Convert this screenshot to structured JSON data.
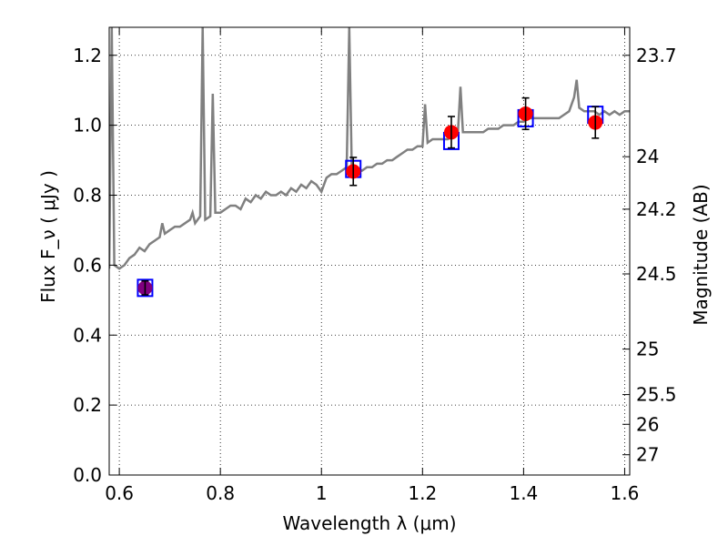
{
  "chart_data": {
    "type": "scatter",
    "title": "",
    "xlabel": "Wavelength  λ (μm)",
    "ylabel": "Flux  F_ν  ( μJy )",
    "ylabel_right": "Magnitude (AB)",
    "xlim": [
      0.58,
      1.61
    ],
    "ylim": [
      0.0,
      1.28
    ],
    "grid": true,
    "x_ticks": [
      0.6,
      0.8,
      1.0,
      1.2,
      1.4,
      1.6
    ],
    "x_tick_labels": [
      "0.6",
      "0.8",
      "1",
      "1.2",
      "1.4",
      "1.6"
    ],
    "y_ticks": [
      0.0,
      0.2,
      0.4,
      0.6,
      0.8,
      1.0,
      1.2
    ],
    "y_tick_labels": [
      "0.0",
      "0.2",
      "0.4",
      "0.6",
      "0.8",
      "1.0",
      "1.2"
    ],
    "right_ticks": [
      {
        "label": "23.7",
        "flux": 1.2
      },
      {
        "label": "24",
        "flux": 0.91
      },
      {
        "label": "24.2",
        "flux": 0.76
      },
      {
        "label": "24.5",
        "flux": 0.575
      },
      {
        "label": "25",
        "flux": 0.36
      },
      {
        "label": "25.5",
        "flux": 0.23
      },
      {
        "label": "26",
        "flux": 0.145
      },
      {
        "label": "27",
        "flux": 0.058
      }
    ],
    "series": [
      {
        "kind": "line",
        "color": "#808080",
        "points": [
          [
            0.58,
            0.59
          ],
          [
            0.585,
            1.28
          ],
          [
            0.59,
            0.6
          ],
          [
            0.6,
            0.59
          ],
          [
            0.61,
            0.6
          ],
          [
            0.62,
            0.62
          ],
          [
            0.63,
            0.63
          ],
          [
            0.64,
            0.65
          ],
          [
            0.65,
            0.64
          ],
          [
            0.66,
            0.66
          ],
          [
            0.67,
            0.67
          ],
          [
            0.68,
            0.68
          ],
          [
            0.685,
            0.72
          ],
          [
            0.69,
            0.69
          ],
          [
            0.7,
            0.7
          ],
          [
            0.71,
            0.71
          ],
          [
            0.72,
            0.71
          ],
          [
            0.73,
            0.72
          ],
          [
            0.74,
            0.73
          ],
          [
            0.745,
            0.75
          ],
          [
            0.75,
            0.72
          ],
          [
            0.76,
            0.74
          ],
          [
            0.765,
            1.28
          ],
          [
            0.77,
            0.73
          ],
          [
            0.78,
            0.74
          ],
          [
            0.785,
            1.09
          ],
          [
            0.79,
            0.75
          ],
          [
            0.8,
            0.75
          ],
          [
            0.81,
            0.76
          ],
          [
            0.82,
            0.77
          ],
          [
            0.83,
            0.77
          ],
          [
            0.84,
            0.76
          ],
          [
            0.85,
            0.79
          ],
          [
            0.86,
            0.78
          ],
          [
            0.87,
            0.8
          ],
          [
            0.88,
            0.79
          ],
          [
            0.89,
            0.81
          ],
          [
            0.9,
            0.8
          ],
          [
            0.91,
            0.8
          ],
          [
            0.92,
            0.81
          ],
          [
            0.93,
            0.8
          ],
          [
            0.94,
            0.82
          ],
          [
            0.95,
            0.81
          ],
          [
            0.96,
            0.83
          ],
          [
            0.97,
            0.82
          ],
          [
            0.98,
            0.84
          ],
          [
            0.99,
            0.83
          ],
          [
            1.0,
            0.81
          ],
          [
            1.01,
            0.85
          ],
          [
            1.02,
            0.86
          ],
          [
            1.03,
            0.86
          ],
          [
            1.04,
            0.87
          ],
          [
            1.05,
            0.88
          ],
          [
            1.055,
            1.28
          ],
          [
            1.06,
            0.87
          ],
          [
            1.07,
            0.88
          ],
          [
            1.08,
            0.87
          ],
          [
            1.09,
            0.88
          ],
          [
            1.1,
            0.88
          ],
          [
            1.11,
            0.89
          ],
          [
            1.12,
            0.89
          ],
          [
            1.13,
            0.9
          ],
          [
            1.14,
            0.9
          ],
          [
            1.15,
            0.91
          ],
          [
            1.16,
            0.92
          ],
          [
            1.17,
            0.93
          ],
          [
            1.18,
            0.93
          ],
          [
            1.19,
            0.94
          ],
          [
            1.2,
            0.94
          ],
          [
            1.205,
            1.06
          ],
          [
            1.21,
            0.95
          ],
          [
            1.22,
            0.96
          ],
          [
            1.23,
            0.96
          ],
          [
            1.24,
            0.96
          ],
          [
            1.25,
            0.96
          ],
          [
            1.26,
            0.97
          ],
          [
            1.27,
            0.98
          ],
          [
            1.275,
            1.11
          ],
          [
            1.28,
            0.98
          ],
          [
            1.29,
            0.98
          ],
          [
            1.3,
            0.98
          ],
          [
            1.31,
            0.98
          ],
          [
            1.32,
            0.98
          ],
          [
            1.33,
            0.99
          ],
          [
            1.34,
            0.99
          ],
          [
            1.35,
            0.99
          ],
          [
            1.36,
            1.0
          ],
          [
            1.37,
            1.0
          ],
          [
            1.38,
            1.0
          ],
          [
            1.39,
            1.01
          ],
          [
            1.4,
            1.01
          ],
          [
            1.41,
            1.02
          ],
          [
            1.42,
            1.02
          ],
          [
            1.43,
            1.02
          ],
          [
            1.44,
            1.02
          ],
          [
            1.45,
            1.02
          ],
          [
            1.46,
            1.02
          ],
          [
            1.47,
            1.02
          ],
          [
            1.48,
            1.03
          ],
          [
            1.49,
            1.04
          ],
          [
            1.5,
            1.08
          ],
          [
            1.505,
            1.13
          ],
          [
            1.51,
            1.05
          ],
          [
            1.52,
            1.04
          ],
          [
            1.53,
            1.04
          ],
          [
            1.54,
            1.04
          ],
          [
            1.55,
            1.03
          ],
          [
            1.56,
            1.04
          ],
          [
            1.57,
            1.03
          ],
          [
            1.58,
            1.04
          ],
          [
            1.59,
            1.03
          ],
          [
            1.6,
            1.04
          ],
          [
            1.61,
            1.04
          ]
        ]
      },
      {
        "kind": "model-points",
        "color": "#0000ff",
        "marker": "open-square",
        "x": [
          0.651,
          1.063,
          1.257,
          1.404,
          1.542
        ],
        "y": [
          0.535,
          0.875,
          0.955,
          1.02,
          1.03
        ]
      },
      {
        "kind": "observed-points",
        "color": "#ff0000",
        "marker": "filled-circle",
        "x": [
          0.651,
          1.063,
          1.257,
          1.404,
          1.542
        ],
        "y": [
          0.535,
          0.868,
          0.98,
          1.033,
          1.008
        ],
        "yerr": [
          0.02,
          0.04,
          0.045,
          0.045,
          0.045
        ],
        "fill": [
          "#800080",
          "#ff0000",
          "#ff0000",
          "#ff0000",
          "#ff0000"
        ]
      }
    ]
  }
}
